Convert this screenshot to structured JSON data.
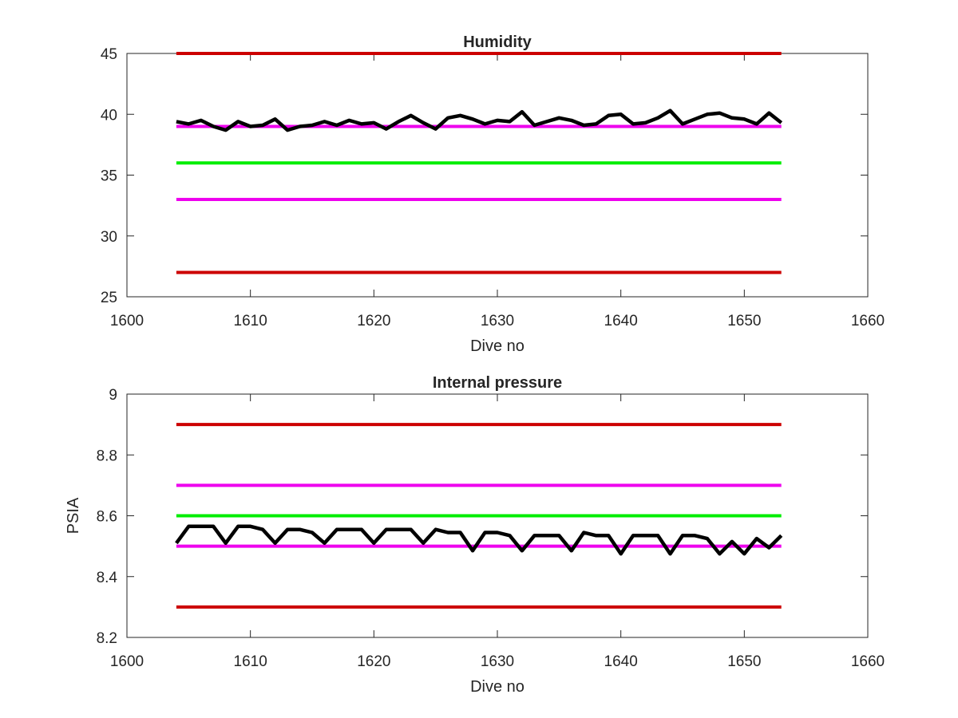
{
  "chart_data": [
    {
      "type": "line",
      "title": "Humidity",
      "xlabel": "Dive no",
      "ylabel": "",
      "xlim": [
        1600,
        1660
      ],
      "ylim": [
        25,
        45
      ],
      "xticks": [
        "1600",
        "1610",
        "1620",
        "1630",
        "1640",
        "1650",
        "1660"
      ],
      "yticks": [
        "25",
        "30",
        "35",
        "40",
        "45"
      ],
      "grid": false,
      "series": [
        {
          "x": [
            1604,
            1653
          ],
          "values": [
            45,
            45
          ],
          "color": "#cc0000"
        },
        {
          "x": [
            1604,
            1653
          ],
          "values": [
            39,
            39
          ],
          "color": "#ee00ee"
        },
        {
          "x": [
            1604,
            1653
          ],
          "values": [
            36,
            36
          ],
          "color": "#00ee00"
        },
        {
          "x": [
            1604,
            1653
          ],
          "values": [
            33,
            33
          ],
          "color": "#ee00ee"
        },
        {
          "x": [
            1604,
            1653
          ],
          "values": [
            27,
            27
          ],
          "color": "#cc0000"
        },
        {
          "color": "#000000",
          "x": [
            1604,
            1605,
            1606,
            1607,
            1608,
            1609,
            1610,
            1611,
            1612,
            1613,
            1614,
            1615,
            1616,
            1617,
            1618,
            1619,
            1620,
            1621,
            1622,
            1623,
            1624,
            1625,
            1626,
            1627,
            1628,
            1629,
            1630,
            1631,
            1632,
            1633,
            1634,
            1635,
            1636,
            1637,
            1638,
            1639,
            1640,
            1641,
            1642,
            1643,
            1644,
            1645,
            1646,
            1647,
            1648,
            1649,
            1650,
            1651,
            1652,
            1653
          ],
          "values": [
            39.4,
            39.2,
            39.5,
            39.0,
            38.7,
            39.4,
            39.0,
            39.1,
            39.6,
            38.7,
            39.0,
            39.1,
            39.4,
            39.1,
            39.5,
            39.2,
            39.3,
            38.8,
            39.4,
            39.9,
            39.3,
            38.8,
            39.7,
            39.9,
            39.6,
            39.2,
            39.5,
            39.4,
            40.2,
            39.1,
            39.4,
            39.7,
            39.5,
            39.1,
            39.2,
            39.9,
            40.0,
            39.2,
            39.3,
            39.7,
            40.3,
            39.2,
            39.6,
            40.0,
            40.1,
            39.7,
            39.6,
            39.2,
            40.1,
            39.3
          ]
        }
      ]
    },
    {
      "type": "line",
      "title": "Internal pressure",
      "xlabel": "Dive no",
      "ylabel": "PSIA",
      "xlim": [
        1600,
        1660
      ],
      "ylim": [
        8.2,
        9
      ],
      "xticks": [
        "1600",
        "1610",
        "1620",
        "1630",
        "1640",
        "1650",
        "1660"
      ],
      "yticks": [
        "8.2",
        "8.4",
        "8.6",
        "8.8",
        "9"
      ],
      "grid": false,
      "series": [
        {
          "x": [
            1604,
            1653
          ],
          "values": [
            8.9,
            8.9
          ],
          "color": "#cc0000"
        },
        {
          "x": [
            1604,
            1653
          ],
          "values": [
            8.7,
            8.7
          ],
          "color": "#ee00ee"
        },
        {
          "x": [
            1604,
            1653
          ],
          "values": [
            8.6,
            8.6
          ],
          "color": "#00ee00"
        },
        {
          "x": [
            1604,
            1653
          ],
          "values": [
            8.5,
            8.5
          ],
          "color": "#ee00ee"
        },
        {
          "x": [
            1604,
            1653
          ],
          "values": [
            8.3,
            8.3
          ],
          "color": "#cc0000"
        },
        {
          "color": "#000000",
          "x": [
            1604,
            1605,
            1606,
            1607,
            1608,
            1609,
            1610,
            1611,
            1612,
            1613,
            1614,
            1615,
            1616,
            1617,
            1618,
            1619,
            1620,
            1621,
            1622,
            1623,
            1624,
            1625,
            1626,
            1627,
            1628,
            1629,
            1630,
            1631,
            1632,
            1633,
            1634,
            1635,
            1636,
            1637,
            1638,
            1639,
            1640,
            1641,
            1642,
            1643,
            1644,
            1645,
            1646,
            1647,
            1648,
            1649,
            1650,
            1651,
            1652,
            1653
          ],
          "values": [
            8.51,
            8.565,
            8.565,
            8.565,
            8.51,
            8.565,
            8.565,
            8.555,
            8.51,
            8.555,
            8.555,
            8.545,
            8.51,
            8.555,
            8.555,
            8.555,
            8.51,
            8.555,
            8.555,
            8.555,
            8.51,
            8.555,
            8.545,
            8.545,
            8.485,
            8.545,
            8.545,
            8.535,
            8.485,
            8.535,
            8.535,
            8.535,
            8.485,
            8.545,
            8.535,
            8.535,
            8.475,
            8.535,
            8.535,
            8.535,
            8.475,
            8.535,
            8.535,
            8.525,
            8.475,
            8.515,
            8.475,
            8.525,
            8.495,
            8.535
          ]
        }
      ]
    }
  ]
}
